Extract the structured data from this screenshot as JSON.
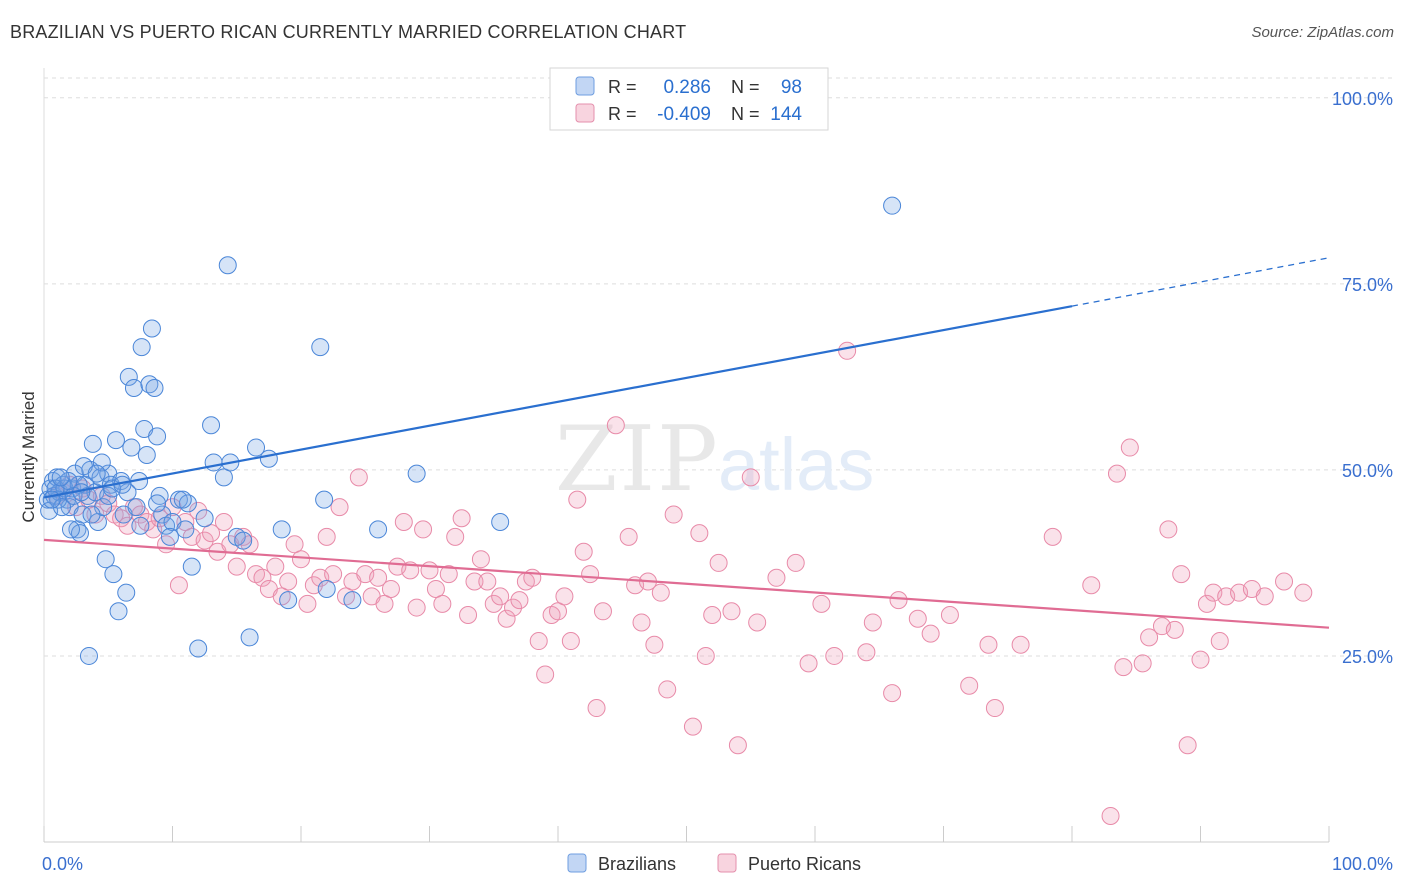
{
  "title": "BRAZILIAN VS PUERTO RICAN CURRENTLY MARRIED CORRELATION CHART",
  "source": "Source: ZipAtlas.com",
  "watermark": {
    "zip": "ZIP",
    "atlas": "atlas"
  },
  "colors": {
    "blue": "#4a86d8",
    "blue_fill": "rgba(120,165,230,0.30)",
    "blue_line": "#2a6fcf",
    "pink": "#e88aa8",
    "pink_fill": "rgba(240,160,185,0.30)",
    "pink_line": "#e06c93",
    "axis_label": "#3a6fcf",
    "grid": "#dddddd"
  },
  "legend_top": {
    "rows": [
      {
        "r_label": "R =",
        "r_value": "0.286",
        "n_label": "N =",
        "n_value": "98"
      },
      {
        "r_label": "R =",
        "r_value": "-0.409",
        "n_label": "N =",
        "n_value": "144"
      }
    ]
  },
  "legend_bottom": {
    "items": [
      "Brazilians",
      "Puerto Ricans"
    ]
  },
  "chart_data": {
    "type": "scatter",
    "title": "BRAZILIAN VS PUERTO RICAN CURRENTLY MARRIED CORRELATION CHART",
    "xlabel": "",
    "ylabel": "Currently Married",
    "xlim": [
      0,
      100
    ],
    "ylim": [
      0,
      104
    ],
    "x_tick_labels": [
      "0.0%",
      "100.0%"
    ],
    "y_ticks": [
      25,
      50,
      75,
      100
    ],
    "y_tick_labels": [
      "25.0%",
      "50.0%",
      "75.0%",
      "100.0%"
    ],
    "series": [
      {
        "name": "Brazilians",
        "r": 0.286,
        "n": 98,
        "trend": {
          "x0": 0,
          "y0": 46.3,
          "x1": 80,
          "y1": 72.0,
          "dash_x1": 100,
          "dash_y1": 78.5
        },
        "points": [
          [
            0.3,
            46
          ],
          [
            0.5,
            47.5
          ],
          [
            0.7,
            48.5
          ],
          [
            0.4,
            44.5
          ],
          [
            0.8,
            46.5
          ],
          [
            1.0,
            49
          ],
          [
            1.2,
            47
          ],
          [
            1.5,
            48
          ],
          [
            1.8,
            46
          ],
          [
            2.0,
            45
          ],
          [
            2.2,
            47.5
          ],
          [
            2.4,
            49.5
          ],
          [
            2.6,
            42
          ],
          [
            2.8,
            41.5
          ],
          [
            3.0,
            44
          ],
          [
            3.2,
            48
          ],
          [
            3.4,
            46.5
          ],
          [
            3.6,
            50
          ],
          [
            3.8,
            53.5
          ],
          [
            4.0,
            47
          ],
          [
            4.2,
            43
          ],
          [
            4.4,
            49
          ],
          [
            4.6,
            45
          ],
          [
            4.8,
            38
          ],
          [
            5.0,
            49.5
          ],
          [
            5.2,
            48
          ],
          [
            5.4,
            36
          ],
          [
            5.6,
            54
          ],
          [
            5.8,
            31
          ],
          [
            6.0,
            48.5
          ],
          [
            6.2,
            44
          ],
          [
            6.4,
            33.5
          ],
          [
            6.6,
            62.5
          ],
          [
            6.8,
            53
          ],
          [
            7.0,
            61
          ],
          [
            7.2,
            45
          ],
          [
            7.4,
            48.5
          ],
          [
            7.6,
            66.5
          ],
          [
            7.8,
            55.5
          ],
          [
            8.0,
            52
          ],
          [
            8.2,
            61.5
          ],
          [
            8.4,
            69
          ],
          [
            8.6,
            61
          ],
          [
            8.8,
            54.5
          ],
          [
            9.0,
            46.5
          ],
          [
            9.2,
            44
          ],
          [
            3.5,
            25
          ],
          [
            2.1,
            42
          ],
          [
            1.6,
            47.5
          ],
          [
            1.1,
            46
          ],
          [
            8.8,
            45.5
          ],
          [
            9.5,
            42.5
          ],
          [
            10.0,
            43
          ],
          [
            10.5,
            46
          ],
          [
            11.0,
            42
          ],
          [
            11.5,
            37
          ],
          [
            12.0,
            26
          ],
          [
            12.5,
            43.5
          ],
          [
            13.0,
            56
          ],
          [
            13.2,
            51
          ],
          [
            14.0,
            49
          ],
          [
            14.3,
            77.5
          ],
          [
            14.5,
            51
          ],
          [
            15.0,
            41
          ],
          [
            15.5,
            40.5
          ],
          [
            16.0,
            27.5
          ],
          [
            16.5,
            53
          ],
          [
            17.5,
            51.5
          ],
          [
            18.5,
            42
          ],
          [
            19.0,
            32.5
          ],
          [
            21.5,
            66.5
          ],
          [
            21.8,
            46
          ],
          [
            22.0,
            34
          ],
          [
            24.0,
            32.5
          ],
          [
            26.0,
            42
          ],
          [
            29.0,
            49.5
          ],
          [
            35.5,
            43
          ],
          [
            66.0,
            85.5
          ],
          [
            5.0,
            46.5
          ],
          [
            6.5,
            47
          ],
          [
            7.5,
            42.5
          ],
          [
            3.1,
            50.5
          ],
          [
            2.7,
            48
          ],
          [
            4.5,
            51
          ],
          [
            0.9,
            47.5
          ],
          [
            1.4,
            45
          ],
          [
            2.3,
            46.5
          ],
          [
            3.7,
            44
          ],
          [
            4.1,
            49.5
          ],
          [
            5.3,
            47.5
          ],
          [
            6.1,
            48
          ],
          [
            9.8,
            41
          ],
          [
            11.2,
            45.5
          ],
          [
            1.9,
            48.5
          ],
          [
            2.9,
            47
          ],
          [
            0.6,
            46
          ],
          [
            1.3,
            49
          ],
          [
            10.8,
            46
          ]
        ]
      },
      {
        "name": "Puerto Ricans",
        "r": -0.409,
        "n": 144,
        "trend": {
          "x0": 0,
          "y0": 40.6,
          "x1": 100,
          "y1": 28.8
        },
        "points": [
          [
            1.0,
            46.5
          ],
          [
            1.5,
            47
          ],
          [
            2.0,
            48
          ],
          [
            2.5,
            45
          ],
          [
            3.0,
            47.5
          ],
          [
            3.5,
            46
          ],
          [
            4.0,
            44
          ],
          [
            4.5,
            46.5
          ],
          [
            5.0,
            45.5
          ],
          [
            5.5,
            44
          ],
          [
            6.0,
            43.5
          ],
          [
            6.5,
            42.5
          ],
          [
            7.0,
            45
          ],
          [
            7.5,
            44
          ],
          [
            8.0,
            43
          ],
          [
            8.5,
            42
          ],
          [
            9.0,
            43.5
          ],
          [
            9.5,
            40
          ],
          [
            10.0,
            45
          ],
          [
            10.5,
            34.5
          ],
          [
            11.0,
            43
          ],
          [
            11.5,
            41
          ],
          [
            12.0,
            44.5
          ],
          [
            12.5,
            40.5
          ],
          [
            13.0,
            41.5
          ],
          [
            13.5,
            39
          ],
          [
            14.0,
            43
          ],
          [
            14.5,
            40
          ],
          [
            15.0,
            37
          ],
          [
            15.5,
            41
          ],
          [
            16.0,
            40
          ],
          [
            16.5,
            36
          ],
          [
            17.0,
            35.5
          ],
          [
            17.5,
            34
          ],
          [
            18.0,
            37
          ],
          [
            18.5,
            33
          ],
          [
            19.0,
            35
          ],
          [
            19.5,
            40
          ],
          [
            20.0,
            38
          ],
          [
            20.5,
            32
          ],
          [
            21.0,
            34.5
          ],
          [
            21.5,
            35.5
          ],
          [
            22.0,
            41
          ],
          [
            22.5,
            36
          ],
          [
            23.0,
            45
          ],
          [
            23.5,
            33
          ],
          [
            24.0,
            35
          ],
          [
            24.5,
            49
          ],
          [
            25.0,
            36
          ],
          [
            25.5,
            33
          ],
          [
            26.0,
            35.5
          ],
          [
            26.5,
            32
          ],
          [
            27.0,
            34
          ],
          [
            27.5,
            37
          ],
          [
            28.0,
            43
          ],
          [
            28.5,
            36.5
          ],
          [
            29.0,
            31.5
          ],
          [
            29.5,
            42
          ],
          [
            30.0,
            36.5
          ],
          [
            30.5,
            34
          ],
          [
            31.0,
            32
          ],
          [
            31.5,
            36
          ],
          [
            32.0,
            41
          ],
          [
            32.5,
            43.5
          ],
          [
            33.0,
            30.5
          ],
          [
            33.5,
            35
          ],
          [
            34.0,
            38
          ],
          [
            34.5,
            35
          ],
          [
            35.0,
            32
          ],
          [
            35.5,
            33
          ],
          [
            36.0,
            30
          ],
          [
            36.5,
            31.5
          ],
          [
            37.0,
            32.5
          ],
          [
            37.5,
            35
          ],
          [
            38.0,
            35.5
          ],
          [
            38.5,
            27
          ],
          [
            39.0,
            22.5
          ],
          [
            39.5,
            30.5
          ],
          [
            40.0,
            31
          ],
          [
            40.5,
            33
          ],
          [
            41.0,
            27
          ],
          [
            41.5,
            46
          ],
          [
            42.0,
            39
          ],
          [
            42.5,
            36
          ],
          [
            43.0,
            18
          ],
          [
            43.5,
            31
          ],
          [
            44.5,
            56
          ],
          [
            45.5,
            41
          ],
          [
            46.0,
            34.5
          ],
          [
            46.5,
            29.5
          ],
          [
            47.0,
            35
          ],
          [
            47.5,
            26.5
          ],
          [
            48.0,
            33.5
          ],
          [
            48.5,
            20.5
          ],
          [
            49.0,
            44
          ],
          [
            50.5,
            15.5
          ],
          [
            51.0,
            41.5
          ],
          [
            51.5,
            25
          ],
          [
            52.0,
            30.5
          ],
          [
            52.5,
            37.5
          ],
          [
            53.5,
            31
          ],
          [
            54.0,
            13
          ],
          [
            55.0,
            49
          ],
          [
            55.5,
            29.5
          ],
          [
            57.0,
            35.5
          ],
          [
            58.5,
            37.5
          ],
          [
            59.5,
            24
          ],
          [
            60.5,
            32
          ],
          [
            61.5,
            25
          ],
          [
            62.5,
            66
          ],
          [
            64.0,
            25.5
          ],
          [
            64.5,
            29.5
          ],
          [
            66.0,
            20
          ],
          [
            66.5,
            32.5
          ],
          [
            68.0,
            30
          ],
          [
            69.0,
            28
          ],
          [
            70.5,
            30.5
          ],
          [
            72.0,
            21
          ],
          [
            73.5,
            26.5
          ],
          [
            74.0,
            18
          ],
          [
            76.0,
            26.5
          ],
          [
            78.5,
            41
          ],
          [
            81.5,
            34.5
          ],
          [
            83.0,
            3.5
          ],
          [
            83.5,
            49.5
          ],
          [
            84.0,
            23.5
          ],
          [
            84.5,
            53
          ],
          [
            85.5,
            24
          ],
          [
            86.0,
            27.5
          ],
          [
            87.0,
            29
          ],
          [
            87.5,
            42
          ],
          [
            88.0,
            28.5
          ],
          [
            88.5,
            36
          ],
          [
            89.0,
            13
          ],
          [
            90.0,
            24.5
          ],
          [
            90.5,
            32
          ],
          [
            91.0,
            33.5
          ],
          [
            91.5,
            27
          ],
          [
            92.0,
            33
          ],
          [
            93.0,
            33.5
          ],
          [
            94.0,
            34
          ],
          [
            95.0,
            33
          ],
          [
            96.5,
            35
          ],
          [
            98.0,
            33.5
          ]
        ]
      }
    ]
  }
}
